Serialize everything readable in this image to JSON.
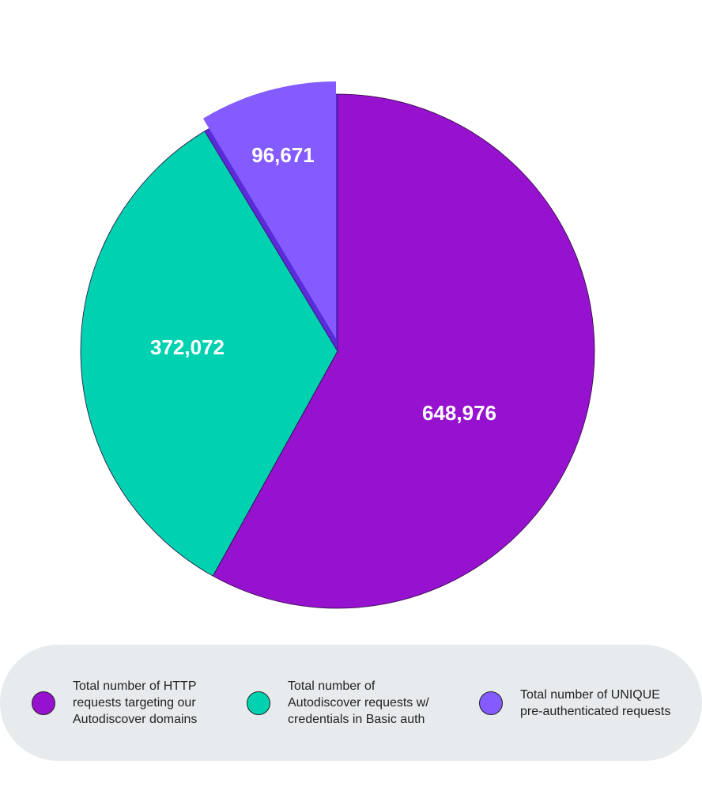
{
  "chart_data": {
    "type": "pie",
    "categories": [
      "Total number of HTTP requests targeting our Autodiscover domains",
      "Total number of Autodiscover requests w/ credentials in Basic auth",
      "Total number of UNIQUE pre-authenticated requests"
    ],
    "values": [
      648976,
      372072,
      96671
    ],
    "value_labels": [
      "648,976",
      "372,072",
      "96,671"
    ],
    "colors": [
      "#9612cf",
      "#00d1b0",
      "#845bff"
    ]
  }
}
